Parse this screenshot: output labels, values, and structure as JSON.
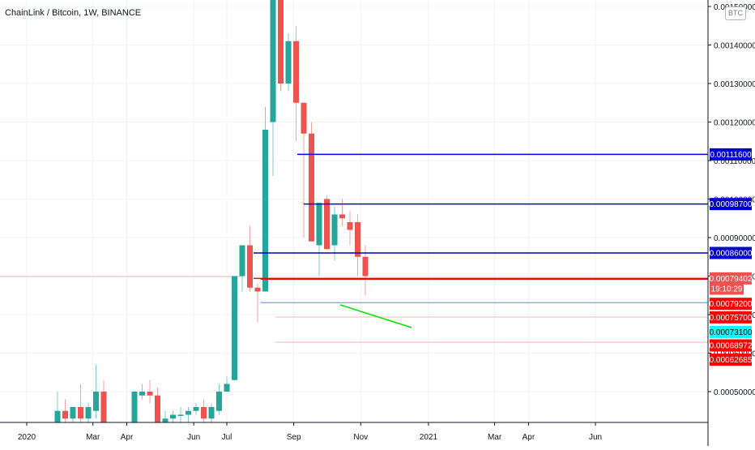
{
  "header": {
    "symbol_line": "ChainLink / Bitcoin, 1W, BINANCE",
    "currency": "BTC"
  },
  "colors": {
    "up": "#26a69a",
    "down": "#ef5350",
    "level_blue": "#0000cc",
    "level_red": "#ff0000",
    "level_cyan": "#00bcd4",
    "trend": "#00e600"
  },
  "chart_data": {
    "type": "candlestick",
    "title": "ChainLink / Bitcoin, 1W, BINANCE",
    "ylim": [
      0.00042,
      0.00152
    ],
    "y_ticks": [
      "0.00150000",
      "0.00140000",
      "0.00130000",
      "0.00120000",
      "0.00110000",
      "0.00100000",
      "0.00090000",
      "0.00080000",
      "0.00070000",
      "0.00060000",
      "0.00050000"
    ],
    "x_ticks": [
      {
        "label": "2020",
        "week": 0
      },
      {
        "label": "Mar",
        "week": 8.6
      },
      {
        "label": "Apr",
        "week": 13
      },
      {
        "label": "Jun",
        "week": 21.7
      },
      {
        "label": "Jul",
        "week": 26
      },
      {
        "label": "Sep",
        "week": 34.7
      },
      {
        "label": "Nov",
        "week": 43.4
      },
      {
        "label": "2021",
        "week": 52.2
      },
      {
        "label": "Mar",
        "week": 60.8
      },
      {
        "label": "Apr",
        "week": 65.2
      },
      {
        "label": "Jun",
        "week": 73.9
      }
    ],
    "candles": [
      {
        "week": 4,
        "o": 0.00042,
        "h": 0.0005,
        "l": 0.00042,
        "c": 0.00045
      },
      {
        "week": 5,
        "o": 0.00045,
        "h": 0.00048,
        "l": 0.00042,
        "c": 0.00043
      },
      {
        "week": 6,
        "o": 0.00043,
        "h": 0.00046,
        "l": 0.00042,
        "c": 0.00046
      },
      {
        "week": 7,
        "o": 0.00046,
        "h": 0.00052,
        "l": 0.00042,
        "c": 0.00043
      },
      {
        "week": 8,
        "o": 0.00043,
        "h": 0.00047,
        "l": 0.00042,
        "c": 0.00046
      },
      {
        "week": 9,
        "o": 0.00045,
        "h": 0.00057,
        "l": 0.00043,
        "c": 0.0005
      },
      {
        "week": 10,
        "o": 0.0005,
        "h": 0.00053,
        "l": 0.00042,
        "c": 0.00042
      },
      {
        "week": 14,
        "o": 0.00042,
        "h": 0.0005,
        "l": 0.00042,
        "c": 0.0005
      },
      {
        "week": 15,
        "o": 0.00049,
        "h": 0.00052,
        "l": 0.00048,
        "c": 0.0005
      },
      {
        "week": 16,
        "o": 0.0005,
        "h": 0.00053,
        "l": 0.00047,
        "c": 0.00049
      },
      {
        "week": 17,
        "o": 0.00049,
        "h": 0.00051,
        "l": 0.00042,
        "c": 0.00042
      },
      {
        "week": 18,
        "o": 0.00042,
        "h": 0.00045,
        "l": 0.00042,
        "c": 0.00043
      },
      {
        "week": 19,
        "o": 0.00043,
        "h": 0.00045,
        "l": 0.00042,
        "c": 0.00044
      },
      {
        "week": 20,
        "o": 0.00044,
        "h": 0.00046,
        "l": 0.00042,
        "c": 0.00044
      },
      {
        "week": 21,
        "o": 0.00044,
        "h": 0.00046,
        "l": 0.00042,
        "c": 0.00045
      },
      {
        "week": 22,
        "o": 0.00045,
        "h": 0.00047,
        "l": 0.00044,
        "c": 0.00046
      },
      {
        "week": 23,
        "o": 0.00046,
        "h": 0.00048,
        "l": 0.00042,
        "c": 0.00043
      },
      {
        "week": 24,
        "o": 0.00043,
        "h": 0.00047,
        "l": 0.00042,
        "c": 0.00046
      },
      {
        "week": 25,
        "o": 0.00045,
        "h": 0.00052,
        "l": 0.00044,
        "c": 0.0005
      },
      {
        "week": 26,
        "o": 0.0005,
        "h": 0.00054,
        "l": 0.0005,
        "c": 0.00052
      },
      {
        "week": 27,
        "o": 0.00053,
        "h": 0.0008,
        "l": 0.00053,
        "c": 0.0008
      },
      {
        "week": 28,
        "o": 0.0008,
        "h": 0.00088,
        "l": 0.00076,
        "c": 0.00088
      },
      {
        "week": 29,
        "o": 0.00088,
        "h": 0.00093,
        "l": 0.00076,
        "c": 0.00077
      },
      {
        "week": 30,
        "o": 0.00077,
        "h": 0.00078,
        "l": 0.00068,
        "c": 0.00076
      },
      {
        "week": 31,
        "o": 0.00076,
        "h": 0.00124,
        "l": 0.00076,
        "c": 0.00118
      },
      {
        "week": 32,
        "o": 0.0012,
        "h": 0.0016,
        "l": 0.00106,
        "c": 0.00155
      },
      {
        "week": 33,
        "o": 0.00156,
        "h": 0.00158,
        "l": 0.00128,
        "c": 0.0013
      },
      {
        "week": 34,
        "o": 0.0013,
        "h": 0.00143,
        "l": 0.00128,
        "c": 0.00141
      },
      {
        "week": 35,
        "o": 0.00141,
        "h": 0.00145,
        "l": 0.00115,
        "c": 0.00125
      },
      {
        "week": 36,
        "o": 0.00125,
        "h": 0.00125,
        "l": 0.0009,
        "c": 0.00117
      },
      {
        "week": 37,
        "o": 0.00117,
        "h": 0.0012,
        "l": 0.0009,
        "c": 0.00089
      },
      {
        "week": 38,
        "o": 0.00088,
        "h": 0.00099,
        "l": 0.0008,
        "c": 0.00099
      },
      {
        "week": 39,
        "o": 0.001,
        "h": 0.00101,
        "l": 0.00087,
        "c": 0.00087
      },
      {
        "week": 40,
        "o": 0.00088,
        "h": 0.00098,
        "l": 0.00084,
        "c": 0.00096
      },
      {
        "week": 41,
        "o": 0.00096,
        "h": 0.001,
        "l": 0.00093,
        "c": 0.00095
      },
      {
        "week": 42,
        "o": 0.00094,
        "h": 0.00097,
        "l": 0.00088,
        "c": 0.00092
      },
      {
        "week": 43,
        "o": 0.00094,
        "h": 0.00096,
        "l": 0.0008,
        "c": 0.00085
      },
      {
        "week": 44,
        "o": 0.00085,
        "h": 0.00088,
        "l": 0.00075,
        "c": 0.0008
      }
    ]
  },
  "levels": [
    {
      "color": "#0000cc",
      "label": "0.00111600",
      "value": 0.001116
    },
    {
      "color": "#0000cc",
      "label": "0.00098700",
      "value": 0.000987
    },
    {
      "color": "#0000cc",
      "label": "0.00086000",
      "value": 0.00086
    },
    {
      "color": "#ff0000",
      "label": "0.00079402",
      "value": 0.00079402
    },
    {
      "color": "#ff0000",
      "label": "0.00079200",
      "value": 0.000792
    },
    {
      "color": "#00bcd4",
      "label": "0.00073100",
      "value": 0.000731
    }
  ],
  "price_tags": [
    {
      "label": "0.00111600",
      "bg": "#0000cc",
      "fg": "#ffffff",
      "value": 0.001116
    },
    {
      "label": "0.00098700",
      "bg": "#0000cc",
      "fg": "#ffffff",
      "value": 0.000987
    },
    {
      "label": "0.00086000",
      "bg": "#0000cc",
      "fg": "#ffffff",
      "value": 0.00086
    },
    {
      "label": "0.00079402",
      "bg": "#ef5350",
      "fg": "#ffffff",
      "value": 0.00079402
    },
    {
      "label": "19:10:29",
      "bg": "#ef5350",
      "fg": "#ffffff",
      "value": 0.0007675
    },
    {
      "label": "0.00079200",
      "bg": "#ff0000",
      "fg": "#ffffff",
      "value": 0.000728
    },
    {
      "label": "0.00075700",
      "bg": "#ff0000",
      "fg": "#ffffff",
      "value": 0.000693
    },
    {
      "label": "0.00073100",
      "bg": "#00ffff",
      "fg": "#000000",
      "value": 0.000655
    },
    {
      "label": "0.00068972",
      "bg": "#ff0000",
      "fg": "#ffffff",
      "value": 0.00062
    },
    {
      "label": "0.00062685",
      "bg": "#ff0000",
      "fg": "#ffffff",
      "value": 0.000583
    }
  ]
}
